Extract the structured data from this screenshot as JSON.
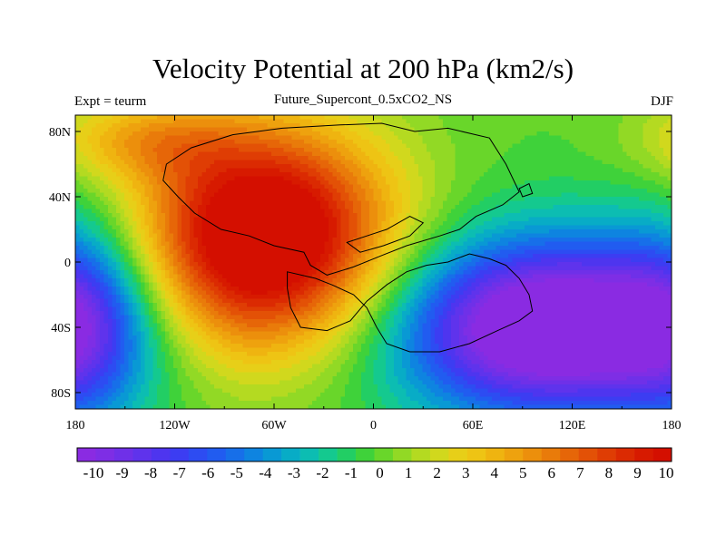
{
  "title": "Velocity Potential at 200 hPa (km2/s)",
  "subtitle": "Future_Supercont_0.5xCO2_NS",
  "left_label": "Expt = teurm",
  "right_label": "DJF",
  "map": {
    "projection": "cylindrical equidistant",
    "lon_range": [
      -180,
      180
    ],
    "lat_range": [
      -90,
      90
    ],
    "x_ticks": [
      "180",
      "120W",
      "60W",
      "0",
      "60E",
      "120E",
      "180"
    ],
    "y_ticks": [
      "80N",
      "40N",
      "0",
      "40S",
      "80S"
    ],
    "field": "velocity potential",
    "max_center": {
      "lon": -65,
      "lat": 15,
      "value": 10
    },
    "min_center": {
      "lon": 105,
      "lat": -40,
      "value": -10
    }
  },
  "colorbar": {
    "labels": [
      "-10",
      "-9",
      "-8",
      "-7",
      "-6",
      "-5",
      "-4",
      "-3",
      "-2",
      "-1",
      "0",
      "1",
      "2",
      "3",
      "4",
      "5",
      "6",
      "7",
      "8",
      "9",
      "10"
    ],
    "colors": [
      "#8a2be2",
      "#7e2ee5",
      "#6f30e8",
      "#5f33ec",
      "#4e35ef",
      "#3c3df2",
      "#2d4cf2",
      "#215cf0",
      "#176fe9",
      "#0e84e0",
      "#0999d4",
      "#08acc6",
      "#0cbdb2",
      "#14c98f",
      "#22ce64",
      "#3fd23a",
      "#69d62a",
      "#92d925",
      "#b4da21",
      "#d1d81d",
      "#e7cf18",
      "#eec414",
      "#efb410",
      "#eea20e",
      "#ec8f0c",
      "#e97b0a",
      "#e66608",
      "#e35106",
      "#df3d04",
      "#db2a02",
      "#d71a00",
      "#d40f00"
    ]
  }
}
